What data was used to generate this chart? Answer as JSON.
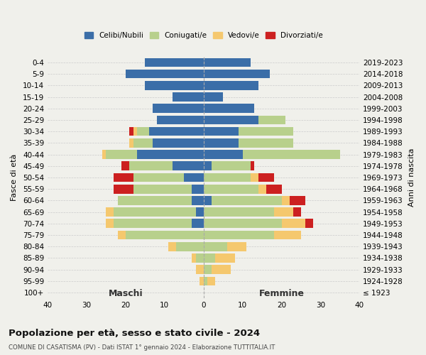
{
  "age_groups": [
    "0-4",
    "5-9",
    "10-14",
    "15-19",
    "20-24",
    "25-29",
    "30-34",
    "35-39",
    "40-44",
    "45-49",
    "50-54",
    "55-59",
    "60-64",
    "65-69",
    "70-74",
    "75-79",
    "80-84",
    "85-89",
    "90-94",
    "95-99",
    "100+"
  ],
  "birth_years": [
    "2019-2023",
    "2014-2018",
    "2009-2013",
    "2004-2008",
    "1999-2003",
    "1994-1998",
    "1989-1993",
    "1984-1988",
    "1979-1983",
    "1974-1978",
    "1969-1973",
    "1964-1968",
    "1959-1963",
    "1954-1958",
    "1949-1953",
    "1944-1948",
    "1939-1943",
    "1934-1938",
    "1929-1933",
    "1924-1928",
    "≤ 1923"
  ],
  "males": {
    "celibi": [
      15,
      20,
      15,
      8,
      13,
      12,
      14,
      13,
      17,
      8,
      5,
      3,
      3,
      2,
      3,
      0,
      0,
      0,
      0,
      0,
      0
    ],
    "coniugati": [
      0,
      0,
      0,
      0,
      0,
      0,
      3,
      5,
      8,
      11,
      13,
      15,
      19,
      21,
      20,
      20,
      7,
      2,
      0,
      0,
      0
    ],
    "vedovi": [
      0,
      0,
      0,
      0,
      0,
      0,
      1,
      1,
      1,
      0,
      0,
      0,
      0,
      2,
      2,
      2,
      2,
      1,
      2,
      1,
      0
    ],
    "divorziati": [
      0,
      0,
      0,
      0,
      0,
      0,
      1,
      0,
      0,
      2,
      5,
      5,
      0,
      0,
      0,
      0,
      0,
      0,
      0,
      0,
      0
    ]
  },
  "females": {
    "nubili": [
      12,
      17,
      14,
      5,
      13,
      14,
      9,
      9,
      10,
      2,
      0,
      0,
      2,
      0,
      0,
      0,
      0,
      0,
      0,
      0,
      0
    ],
    "coniugate": [
      0,
      0,
      0,
      0,
      0,
      7,
      14,
      14,
      25,
      10,
      12,
      14,
      18,
      18,
      20,
      18,
      6,
      3,
      2,
      1,
      0
    ],
    "vedove": [
      0,
      0,
      0,
      0,
      0,
      0,
      0,
      0,
      0,
      0,
      2,
      2,
      2,
      5,
      6,
      7,
      5,
      5,
      5,
      2,
      0
    ],
    "divorziate": [
      0,
      0,
      0,
      0,
      0,
      0,
      0,
      0,
      0,
      1,
      4,
      4,
      4,
      2,
      2,
      0,
      0,
      0,
      0,
      0,
      0
    ]
  },
  "colors": {
    "celibi": "#3b6ea8",
    "coniugati": "#b8d08c",
    "vedovi": "#f5c86e",
    "divorziati": "#cc2020"
  },
  "xlim": 40,
  "title": "Popolazione per età, sesso e stato civile - 2024",
  "subtitle": "COMUNE DI CASATISMA (PV) - Dati ISTAT 1° gennaio 2024 - Elaborazione TUTTITALIA.IT",
  "ylabel_left": "Fasce di età",
  "ylabel_right": "Anni di nascita",
  "xlabel_male": "Maschi",
  "xlabel_female": "Femmine",
  "legend_labels": [
    "Celibi/Nubili",
    "Coniugati/e",
    "Vedovi/e",
    "Divorziati/e"
  ],
  "background_color": "#f0f0eb"
}
